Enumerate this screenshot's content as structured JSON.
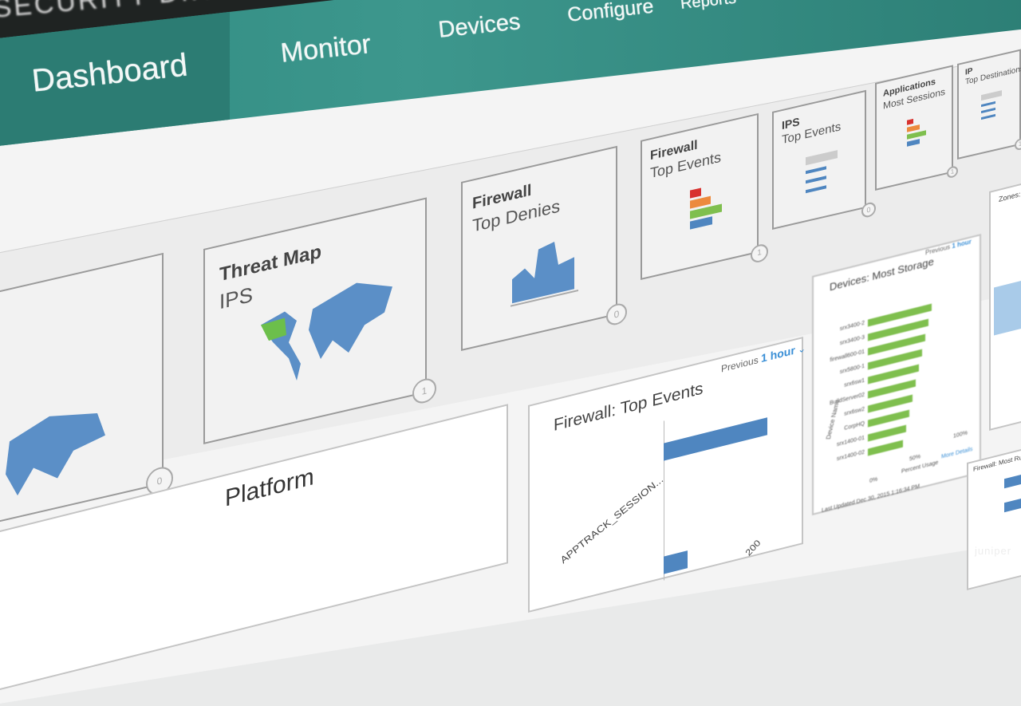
{
  "app": {
    "brand": "SECURITY DIRECTOR"
  },
  "nav": {
    "items": [
      {
        "label": "Dashboard",
        "active": true
      },
      {
        "label": "Monitor"
      },
      {
        "label": "Devices"
      },
      {
        "label": "Configure"
      },
      {
        "label": "Reports"
      }
    ]
  },
  "colors": {
    "nav_teal": "#3d978d",
    "nav_active": "#2c7c73",
    "map_blue": "#5b8fc7",
    "bar_green": "#7fbf4e",
    "bar_blue": "#4f86c0",
    "accent_link": "#3a8fd6"
  },
  "widgets": [
    {
      "title": "",
      "subtitle": "",
      "badge": "0",
      "icon": "world-map-icon"
    },
    {
      "title": "Threat Map",
      "subtitle": "IPS",
      "badge": "1",
      "icon": "world-map-icon"
    },
    {
      "title": "Firewall",
      "subtitle": "Top Denies",
      "badge": "0",
      "icon": "area-chart-icon"
    },
    {
      "title": "Firewall",
      "subtitle": "Top Events",
      "badge": "1",
      "icon": "bar-chart-icon"
    },
    {
      "title": "IPS",
      "subtitle": "Top Events",
      "badge": "0",
      "icon": "list-icon"
    },
    {
      "title": "Applications",
      "subtitle": "Most Sessions",
      "badge": "1",
      "icon": "bar-chart-icon"
    },
    {
      "title": "IP",
      "subtitle": "Top Destinations",
      "badge": "1",
      "icon": "list-icon"
    }
  ],
  "panels": {
    "firewall_events": {
      "title": "Firewall: Top Events",
      "range_prefix": "Previous",
      "range": "1 hour",
      "row_label": "APPTRACK_SESSION...",
      "axis_tick": "200"
    },
    "storage": {
      "title": "Devices: Most Storage",
      "range_prefix": "Previous",
      "range": "1 hour",
      "ylabel": "Device Name",
      "xlabel": "Percent Usage",
      "ticks": [
        "0%",
        "50%",
        "100%"
      ],
      "more": "More Details",
      "last_updated": "Last Updated Dec 30, 2015 1:16:34 PM",
      "devices": [
        "srx3400-2",
        "srx3400-3",
        "firewall600-01",
        "srx5800-1",
        "srx6sw1",
        "BuildServer02",
        "srx6sw2",
        "CorpHQ",
        "srx1400-01",
        "srx1400-02"
      ]
    },
    "platform": {
      "title": "Platform"
    },
    "zones": {
      "title": "Zones: M"
    },
    "rule_hits": {
      "title": "Firewall: Most Rule Hits"
    }
  },
  "watermark": "juniper"
}
